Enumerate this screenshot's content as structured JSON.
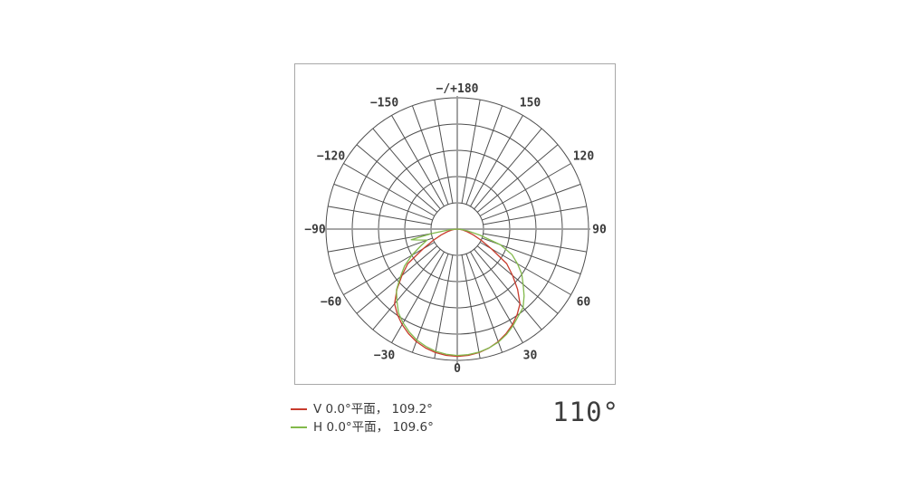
{
  "page": {
    "background": "#ffffff"
  },
  "chart_data": {
    "type": "line",
    "subtype": "polar-photometric",
    "title": "",
    "orientation": "0° at bottom, positive angles to the right, 180° at top",
    "angle_ticks": [
      {
        "angle": 0,
        "label": "0"
      },
      {
        "angle": 30,
        "label": "30"
      },
      {
        "angle": 60,
        "label": "60"
      },
      {
        "angle": 90,
        "label": "90"
      },
      {
        "angle": 120,
        "label": "120"
      },
      {
        "angle": 150,
        "label": "150"
      },
      {
        "angle": 180,
        "label": "−/+180"
      },
      {
        "angle": -150,
        "label": "−150"
      },
      {
        "angle": -120,
        "label": "−120"
      },
      {
        "angle": -90,
        "label": "−90"
      },
      {
        "angle": -60,
        "label": "−60"
      },
      {
        "angle": -30,
        "label": "−30"
      }
    ],
    "spoke_step_deg": 10,
    "radial_ticks": [
      0.2,
      0.4,
      0.6,
      0.8,
      1.0
    ],
    "radial_range": [
      0,
      1.0
    ],
    "grid_color": "#4f4f4f",
    "axis_color": "#999999",
    "tick_label_color": "#3a3a3a",
    "series": [
      {
        "name": "V 0.0°平面",
        "beam_angle": "109.2°",
        "color": "#c83c2d",
        "points": [
          [
            -90,
            0
          ],
          [
            -85,
            0.02
          ],
          [
            -80,
            0.045
          ],
          [
            -75,
            0.08
          ],
          [
            -70,
            0.13
          ],
          [
            -65,
            0.2
          ],
          [
            -60,
            0.3
          ],
          [
            -55,
            0.46
          ],
          [
            -50,
            0.55
          ],
          [
            -45,
            0.65
          ],
          [
            -40,
            0.743
          ],
          [
            -35,
            0.795
          ],
          [
            -30,
            0.84
          ],
          [
            -25,
            0.879
          ],
          [
            -20,
            0.912
          ],
          [
            -15,
            0.937
          ],
          [
            -10,
            0.955
          ],
          [
            -5,
            0.966
          ],
          [
            0,
            0.97
          ],
          [
            5,
            0.966
          ],
          [
            10,
            0.955
          ],
          [
            15,
            0.937
          ],
          [
            20,
            0.912
          ],
          [
            25,
            0.879
          ],
          [
            30,
            0.84
          ],
          [
            35,
            0.795
          ],
          [
            40,
            0.743
          ],
          [
            45,
            0.65
          ],
          [
            50,
            0.55
          ],
          [
            55,
            0.46
          ],
          [
            60,
            0.3
          ],
          [
            65,
            0.2
          ],
          [
            70,
            0.13
          ],
          [
            75,
            0.08
          ],
          [
            80,
            0.045
          ],
          [
            85,
            0.02
          ],
          [
            90,
            0
          ]
        ]
      },
      {
        "name": "H 0.0°平面",
        "beam_angle": "109.6°",
        "color": "#82b94b",
        "points": [
          [
            -90,
            0
          ],
          [
            -85,
            0.06
          ],
          [
            -80,
            0.2
          ],
          [
            -77,
            0.36
          ],
          [
            -75,
            0.32
          ],
          [
            -70,
            0.245
          ],
          [
            -65,
            0.31
          ],
          [
            -60,
            0.4
          ],
          [
            -55,
            0.49
          ],
          [
            -50,
            0.565
          ],
          [
            -45,
            0.655
          ],
          [
            -40,
            0.715
          ],
          [
            -35,
            0.78
          ],
          [
            -30,
            0.825
          ],
          [
            -25,
            0.865
          ],
          [
            -20,
            0.9
          ],
          [
            -15,
            0.925
          ],
          [
            -10,
            0.945
          ],
          [
            -5,
            0.957
          ],
          [
            0,
            0.963
          ],
          [
            5,
            0.96
          ],
          [
            10,
            0.952
          ],
          [
            15,
            0.937
          ],
          [
            20,
            0.916
          ],
          [
            25,
            0.886
          ],
          [
            30,
            0.85
          ],
          [
            35,
            0.81
          ],
          [
            40,
            0.78
          ],
          [
            45,
            0.72
          ],
          [
            50,
            0.655
          ],
          [
            55,
            0.6
          ],
          [
            60,
            0.53
          ],
          [
            65,
            0.46
          ],
          [
            70,
            0.35
          ],
          [
            75,
            0.18
          ],
          [
            80,
            0.08
          ],
          [
            85,
            0.03
          ],
          [
            90,
            0
          ]
        ]
      }
    ]
  },
  "legend": {
    "items": [
      {
        "label": "V 0.0°平面， 109.2°",
        "color": "#c83c2d"
      },
      {
        "label": "H 0.0°平面， 109.6°",
        "color": "#82b94b"
      }
    ]
  },
  "summary_angle": "110°"
}
